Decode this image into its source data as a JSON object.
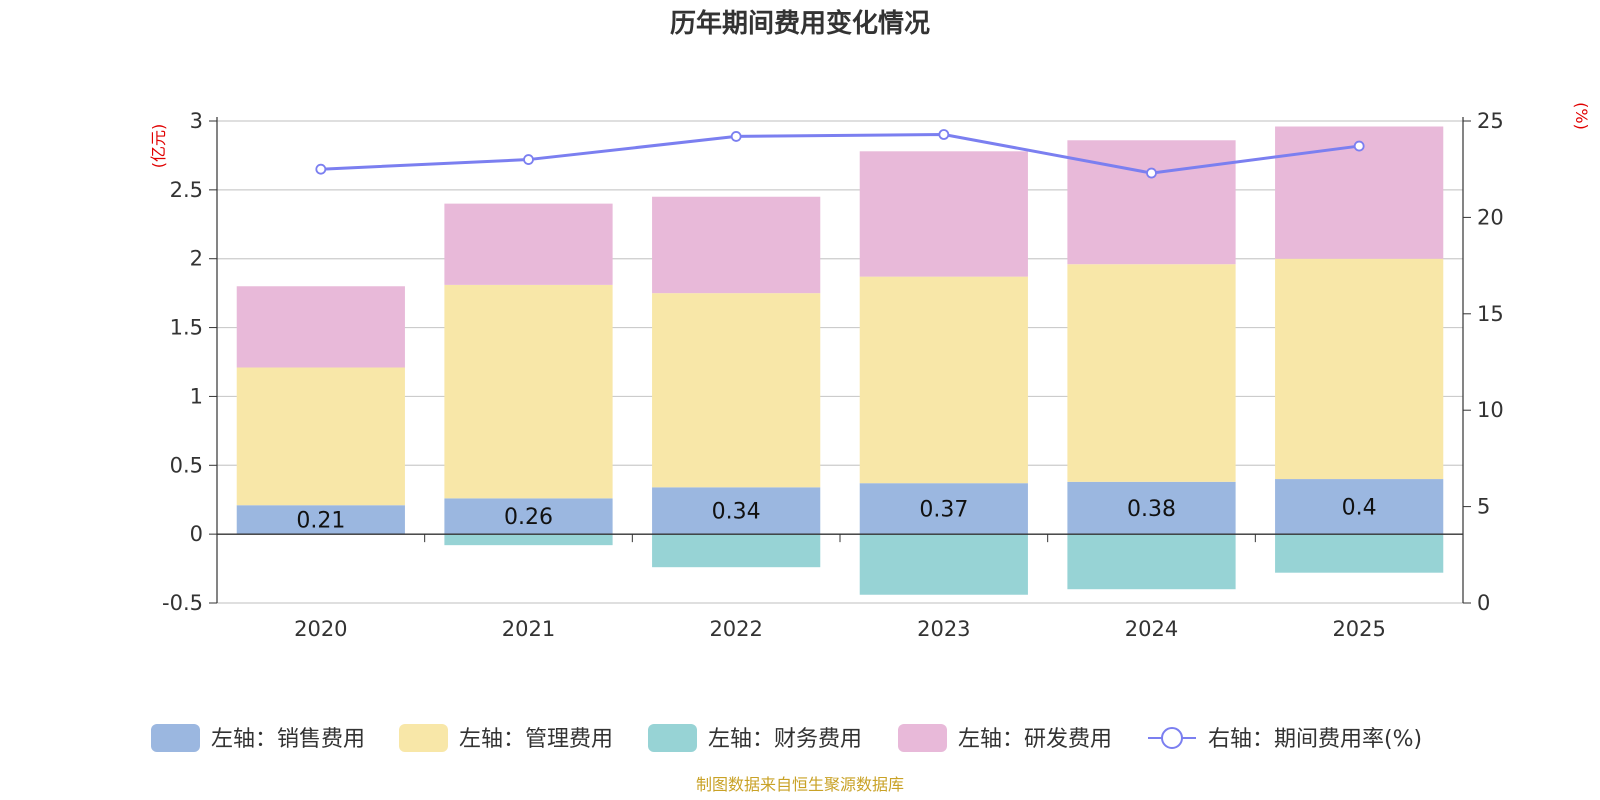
{
  "chart_data": {
    "type": "bar",
    "title": "历年期间费用变化情况",
    "categories": [
      "2020",
      "2021",
      "2022",
      "2023",
      "2024",
      "2025"
    ],
    "left_axis": {
      "unit": "(亿元)",
      "ylim": [
        -0.5,
        3
      ],
      "ticks": [
        -0.5,
        0,
        0.5,
        1,
        1.5,
        2,
        2.5,
        3
      ]
    },
    "right_axis": {
      "unit": "(%)",
      "ylim": [
        0,
        25
      ],
      "ticks": [
        0,
        5,
        10,
        15,
        20,
        25
      ]
    },
    "series": [
      {
        "name": "左轴：销售费用",
        "color": "#9bb7e0",
        "axis": "left",
        "values": [
          0.21,
          0.26,
          0.34,
          0.37,
          0.38,
          0.4
        ],
        "labels": [
          "0.21",
          "0.26",
          "0.34",
          "0.37",
          "0.38",
          "0.4"
        ]
      },
      {
        "name": "左轴：管理费用",
        "color": "#f8e7a8",
        "axis": "left",
        "values": [
          1.0,
          1.55,
          1.41,
          1.5,
          1.58,
          1.6
        ]
      },
      {
        "name": "左轴：财务费用",
        "color": "#97d3d5",
        "axis": "left",
        "values": [
          0.0,
          -0.08,
          -0.24,
          -0.44,
          -0.4,
          -0.28
        ]
      },
      {
        "name": "左轴：研发费用",
        "color": "#e8b9d9",
        "axis": "left",
        "values": [
          0.59,
          0.59,
          0.7,
          0.91,
          0.9,
          0.96
        ]
      },
      {
        "name": "右轴：期间费用率(%)",
        "color": "#7b7ff0",
        "axis": "right",
        "type": "line",
        "values": [
          22.5,
          23.0,
          24.2,
          24.3,
          22.3,
          23.7
        ]
      }
    ],
    "source": "制图数据来自恒生聚源数据库"
  }
}
